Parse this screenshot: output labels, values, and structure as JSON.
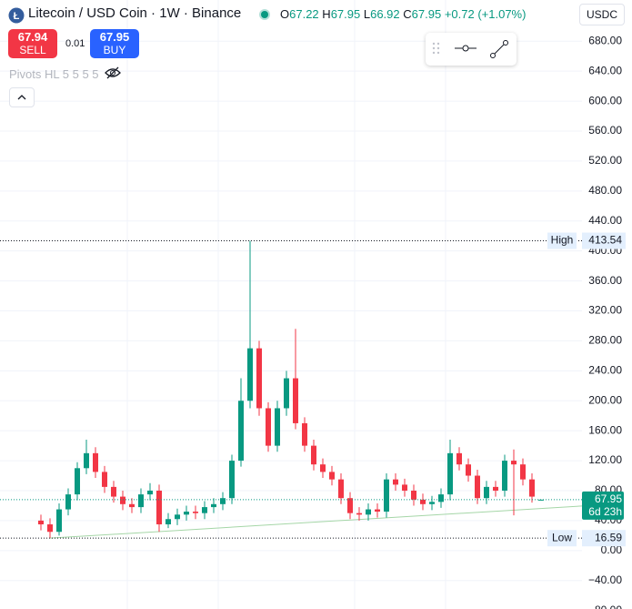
{
  "chart_data": {
    "type": "candlestick",
    "title": "Litecoin / USD Coin · 1W · Binance",
    "header": {
      "open": {
        "label": "O",
        "value": 67.22
      },
      "high": {
        "label": "H",
        "value": 67.95
      },
      "low": {
        "label": "L",
        "value": 66.92
      },
      "close": {
        "label": "C",
        "value": 67.95
      },
      "change": "+0.72 (+1.07%)"
    },
    "trading": {
      "sell_price": "67.94",
      "sell": "SELL",
      "spread": "0.01",
      "buy_price": "67.95",
      "buy": "BUY"
    },
    "indicator": "Pivots HL 5 5 5 5",
    "currency": "USDC",
    "up_color": "#089981",
    "down_color": "#f23645",
    "open": [
      40,
      35,
      25,
      55,
      75,
      110,
      130,
      105,
      85,
      72,
      62,
      58,
      75,
      80,
      35,
      42,
      48,
      52,
      50,
      58,
      62,
      70,
      120,
      200,
      270,
      190,
      140,
      190,
      230,
      170,
      140,
      115,
      105,
      95,
      70,
      50,
      48,
      55,
      52,
      95,
      88,
      80,
      68,
      62,
      65,
      75,
      130,
      115,
      100,
      70,
      85,
      80,
      120,
      115,
      95,
      67.22
    ],
    "high": [
      48,
      43,
      63,
      83,
      118,
      148,
      138,
      113,
      93,
      80,
      70,
      83,
      90,
      88,
      50,
      56,
      60,
      60,
      66,
      70,
      78,
      128,
      230,
      413.54,
      280,
      198,
      200,
      240,
      296,
      178,
      148,
      123,
      113,
      103,
      78,
      58,
      63,
      63,
      103,
      103,
      96,
      88,
      76,
      73,
      83,
      148,
      138,
      123,
      108,
      93,
      93,
      128,
      135,
      123,
      103,
      67.95
    ],
    "low": [
      27,
      16.59,
      20,
      47,
      67,
      102,
      97,
      77,
      64,
      54,
      50,
      50,
      67,
      25,
      30,
      34,
      40,
      42,
      42,
      50,
      54,
      62,
      112,
      190,
      180,
      132,
      132,
      180,
      162,
      132,
      107,
      97,
      87,
      62,
      42,
      40,
      40,
      44,
      44,
      80,
      72,
      60,
      54,
      54,
      57,
      67,
      107,
      92,
      62,
      62,
      72,
      72,
      47,
      87,
      64,
      66.92
    ],
    "close": [
      35,
      25,
      55,
      75,
      110,
      130,
      105,
      85,
      72,
      62,
      58,
      75,
      80,
      35,
      42,
      48,
      52,
      50,
      58,
      62,
      70,
      120,
      200,
      270,
      190,
      140,
      190,
      230,
      170,
      140,
      115,
      105,
      95,
      70,
      50,
      48,
      55,
      52,
      95,
      88,
      80,
      68,
      62,
      65,
      75,
      130,
      115,
      100,
      70,
      85,
      80,
      120,
      115,
      95,
      72,
      67.95
    ],
    "ylim": [
      -78,
      735
    ],
    "yticks": [
      {
        "value": 680,
        "label": "680.00"
      },
      {
        "value": 640,
        "label": "640.00"
      },
      {
        "value": 600,
        "label": "600.00"
      },
      {
        "value": 560,
        "label": "560.00"
      },
      {
        "value": 520,
        "label": "520.00"
      },
      {
        "value": 480,
        "label": "480.00"
      },
      {
        "value": 440,
        "label": "440.00"
      },
      {
        "value": 400,
        "label": "400.00"
      },
      {
        "value": 360,
        "label": "360.00"
      },
      {
        "value": 320,
        "label": "320.00"
      },
      {
        "value": 280,
        "label": "280.00"
      },
      {
        "value": 240,
        "label": "240.00"
      },
      {
        "value": 200,
        "label": "200.00"
      },
      {
        "value": 160,
        "label": "160.00"
      },
      {
        "value": 120,
        "label": "120.00"
      },
      {
        "value": 80,
        "label": "80.00"
      },
      {
        "value": 40,
        "label": "40.00"
      },
      {
        "value": 0,
        "label": "0.00"
      },
      {
        "value": -40,
        "label": "−40.00"
      },
      {
        "value": -80,
        "label": "−80.00"
      }
    ],
    "grid": true,
    "markers": {
      "high": {
        "label": "High",
        "value": 413.54
      },
      "low": {
        "label": "Low",
        "value": 16.59
      },
      "last": {
        "value": 67.95,
        "countdown": "6d 23h"
      }
    },
    "trendline": {
      "color": "#a5d6a7",
      "x": [
        1,
        59.5
      ],
      "values": [
        16.59,
        59.5
      ]
    }
  }
}
